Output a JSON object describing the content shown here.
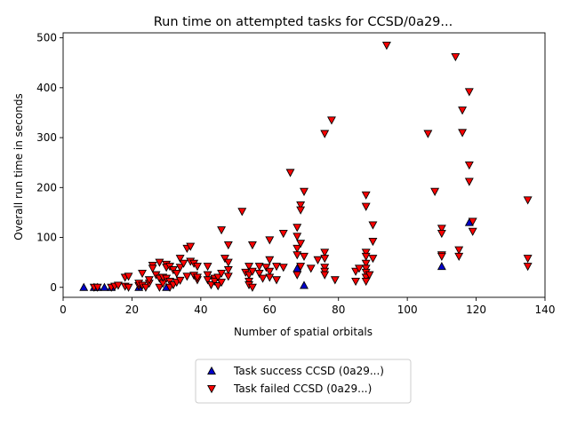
{
  "chart_data": {
    "type": "scatter",
    "title": "Run time on attempted tasks for CCSD/0a29...",
    "xlabel": "Number of spatial orbitals",
    "ylabel": "Overall run time in seconds",
    "xlim": [
      0,
      140
    ],
    "ylim": [
      -20,
      510
    ],
    "xticks": [
      0,
      20,
      40,
      60,
      80,
      100,
      120,
      140
    ],
    "yticks": [
      0,
      100,
      200,
      300,
      400,
      500
    ],
    "grid": false,
    "legend_position": "below-center",
    "series": [
      {
        "name": "Task success CCSD (0a29...)",
        "marker": "triangle-up",
        "color": "#0000cc",
        "points": [
          [
            6,
            0
          ],
          [
            9,
            0
          ],
          [
            10,
            0
          ],
          [
            12,
            0
          ],
          [
            14,
            0
          ],
          [
            22,
            0
          ],
          [
            30,
            0
          ],
          [
            68,
            38
          ],
          [
            70,
            4
          ],
          [
            110,
            42
          ],
          [
            118,
            130
          ]
        ]
      },
      {
        "name": "Task failed CCSD (0a29...)",
        "marker": "triangle-down",
        "color": "#ff0000",
        "points": [
          [
            9,
            0
          ],
          [
            10,
            0
          ],
          [
            14,
            0
          ],
          [
            15,
            2
          ],
          [
            16,
            4
          ],
          [
            18,
            2
          ],
          [
            18,
            20
          ],
          [
            19,
            22
          ],
          [
            19,
            0
          ],
          [
            22,
            3
          ],
          [
            22,
            8
          ],
          [
            23,
            28
          ],
          [
            23,
            4
          ],
          [
            24,
            0
          ],
          [
            25,
            8
          ],
          [
            25,
            15
          ],
          [
            26,
            44
          ],
          [
            26,
            38
          ],
          [
            27,
            25
          ],
          [
            28,
            50
          ],
          [
            28,
            0
          ],
          [
            28,
            18
          ],
          [
            29,
            8
          ],
          [
            29,
            20
          ],
          [
            30,
            46
          ],
          [
            30,
            40
          ],
          [
            30,
            18
          ],
          [
            31,
            12
          ],
          [
            31,
            42
          ],
          [
            31,
            0
          ],
          [
            32,
            5
          ],
          [
            32,
            35
          ],
          [
            33,
            28
          ],
          [
            33,
            10
          ],
          [
            34,
            40
          ],
          [
            34,
            58
          ],
          [
            34,
            14
          ],
          [
            35,
            48
          ],
          [
            36,
            22
          ],
          [
            36,
            78
          ],
          [
            37,
            82
          ],
          [
            37,
            52
          ],
          [
            38,
            48
          ],
          [
            38,
            24
          ],
          [
            39,
            15
          ],
          [
            39,
            20
          ],
          [
            39,
            42
          ],
          [
            42,
            42
          ],
          [
            42,
            25
          ],
          [
            42,
            15
          ],
          [
            43,
            5
          ],
          [
            44,
            18
          ],
          [
            44,
            12
          ],
          [
            45,
            20
          ],
          [
            45,
            3
          ],
          [
            46,
            10
          ],
          [
            46,
            115
          ],
          [
            46,
            28
          ],
          [
            47,
            58
          ],
          [
            48,
            85
          ],
          [
            48,
            50
          ],
          [
            48,
            35
          ],
          [
            48,
            22
          ],
          [
            52,
            152
          ],
          [
            53,
            30
          ],
          [
            54,
            42
          ],
          [
            54,
            25
          ],
          [
            54,
            12
          ],
          [
            54,
            5
          ],
          [
            55,
            85
          ],
          [
            55,
            32
          ],
          [
            55,
            0
          ],
          [
            57,
            42
          ],
          [
            57,
            28
          ],
          [
            58,
            18
          ],
          [
            59,
            40
          ],
          [
            60,
            55
          ],
          [
            60,
            32
          ],
          [
            60,
            95
          ],
          [
            60,
            20
          ],
          [
            62,
            42
          ],
          [
            62,
            15
          ],
          [
            64,
            108
          ],
          [
            64,
            40
          ],
          [
            66,
            230
          ],
          [
            68,
            120
          ],
          [
            68,
            102
          ],
          [
            68,
            78
          ],
          [
            68,
            65
          ],
          [
            68,
            25
          ],
          [
            69,
            165
          ],
          [
            69,
            155
          ],
          [
            69,
            88
          ],
          [
            69,
            42
          ],
          [
            70,
            192
          ],
          [
            70,
            62
          ],
          [
            72,
            38
          ],
          [
            74,
            55
          ],
          [
            76,
            308
          ],
          [
            76,
            70
          ],
          [
            76,
            58
          ],
          [
            76,
            40
          ],
          [
            76,
            32
          ],
          [
            76,
            25
          ],
          [
            78,
            335
          ],
          [
            79,
            15
          ],
          [
            85,
            12
          ],
          [
            85,
            32
          ],
          [
            86,
            38
          ],
          [
            88,
            185
          ],
          [
            88,
            162
          ],
          [
            88,
            70
          ],
          [
            88,
            62
          ],
          [
            88,
            48
          ],
          [
            88,
            38
          ],
          [
            88,
            30
          ],
          [
            88,
            20
          ],
          [
            88,
            12
          ],
          [
            89,
            25
          ],
          [
            90,
            125
          ],
          [
            90,
            92
          ],
          [
            90,
            58
          ],
          [
            94,
            485
          ],
          [
            106,
            308
          ],
          [
            108,
            192
          ],
          [
            110,
            118
          ],
          [
            110,
            108
          ],
          [
            110,
            65
          ],
          [
            110,
            62
          ],
          [
            114,
            462
          ],
          [
            115,
            75
          ],
          [
            115,
            62
          ],
          [
            116,
            355
          ],
          [
            116,
            310
          ],
          [
            118,
            392
          ],
          [
            118,
            245
          ],
          [
            118,
            212
          ],
          [
            119,
            132
          ],
          [
            119,
            112
          ],
          [
            135,
            175
          ],
          [
            135,
            58
          ],
          [
            135,
            42
          ]
        ]
      }
    ]
  }
}
